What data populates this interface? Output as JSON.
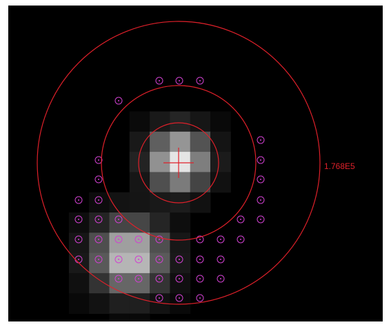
{
  "annotation": {
    "label": "1.768E5"
  }
}
